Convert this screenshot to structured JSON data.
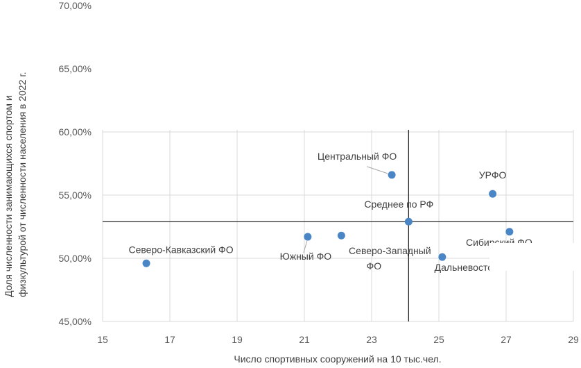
{
  "chart_data": {
    "type": "scatter",
    "title": "",
    "xlabel": "Число спортивных сооружений на 10 тыс.чел.",
    "ylabel_lines": [
      "Доля численности занимающихся спортом и",
      "физкультурой от численности населения в 2022 г."
    ],
    "xlim": [
      15,
      29
    ],
    "ylim": [
      45,
      70
    ],
    "x_ticks": [
      "15",
      "17",
      "19",
      "21",
      "23",
      "25",
      "27",
      "29"
    ],
    "y_ticks": [
      "45,00%",
      "50,00%",
      "55,00%",
      "60,00%",
      "65,00%",
      "70,00%"
    ],
    "grid": true,
    "points": [
      {
        "label": "Северо-Кавказский ФО",
        "x": 16.3,
        "y": 49.6
      },
      {
        "label": "Южный ФО",
        "x": 21.1,
        "y": 51.7
      },
      {
        "label": "Северо-Западный ФО",
        "x": 22.1,
        "y": 51.8
      },
      {
        "label": "Центральный ФО",
        "x": 23.6,
        "y": 56.6
      },
      {
        "label": "Среднее по РФ",
        "x": 24.1,
        "y": 52.9
      },
      {
        "label": "Дальневосточный ФО",
        "x": 25.1,
        "y": 50.1
      },
      {
        "label": "УРФО",
        "x": 26.6,
        "y": 55.1
      },
      {
        "label": "Сибирский ФО",
        "x": 27.1,
        "y": 52.1
      }
    ],
    "reference_lines": {
      "x": 24.1,
      "y": 52.9
    }
  }
}
